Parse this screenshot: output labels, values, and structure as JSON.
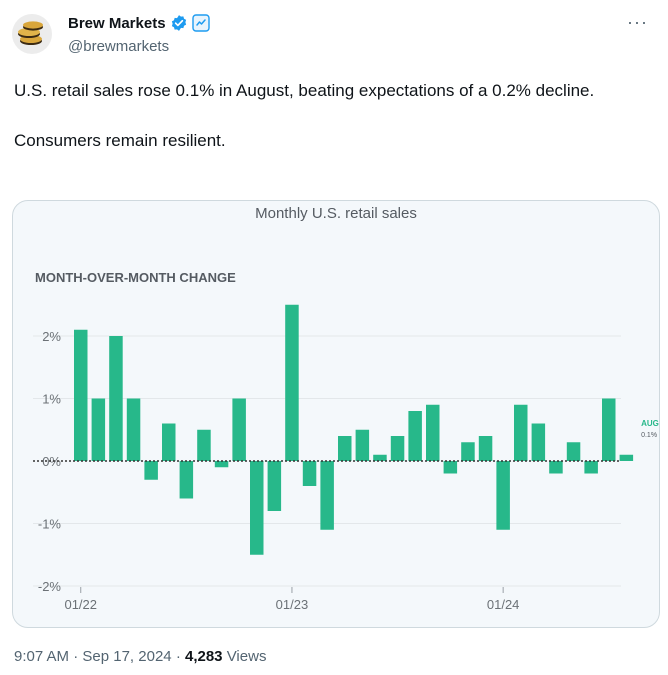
{
  "account": {
    "name": "Brew Markets",
    "handle": "@brewmarkets"
  },
  "tweet": {
    "text": "U.S. retail sales rose 0.1% in August, beating expectations of a 0.2% decline.\n\nConsumers remain resilient."
  },
  "meta": {
    "time": "9:07 AM",
    "date": "Sep 17, 2024",
    "views_count": "4,283",
    "views_label": "Views",
    "sep": "·"
  },
  "colors": {
    "bar": "#27b88a",
    "brand_blue": "#1d9bf0"
  },
  "icons": [
    "avatar-coin-stack-icon",
    "verified-badge-icon",
    "affiliate-badge-icon",
    "more-options-icon"
  ],
  "chart_data": {
    "type": "bar",
    "title": "Monthly U.S. retail sales",
    "subtitle": "MONTH-OVER-MONTH CHANGE",
    "xlabel": "",
    "ylabel": "",
    "ylim": [
      -2,
      2.5
    ],
    "yticks": [
      "2%",
      "1%",
      "0%",
      "-1%",
      "-2%"
    ],
    "ytick_values": [
      2,
      1,
      0,
      -1,
      -2
    ],
    "xtick_labels": [
      {
        "label": "01/22",
        "index": 0
      },
      {
        "label": "01/23",
        "index": 12
      },
      {
        "label": "01/24",
        "index": 24
      }
    ],
    "categories": [
      "01/22",
      "02/22",
      "03/22",
      "04/22",
      "05/22",
      "06/22",
      "07/22",
      "08/22",
      "09/22",
      "10/22",
      "11/22",
      "12/22",
      "01/23",
      "02/23",
      "03/23",
      "04/23",
      "05/23",
      "06/23",
      "07/23",
      "08/23",
      "09/23",
      "10/23",
      "11/23",
      "12/23",
      "01/24",
      "02/24",
      "03/24",
      "04/24",
      "05/24",
      "06/24",
      "07/24",
      "08/24"
    ],
    "values": [
      2.1,
      1.0,
      2.0,
      1.0,
      -0.3,
      0.6,
      -0.6,
      0.5,
      -0.1,
      1.0,
      -1.5,
      -0.8,
      2.5,
      -0.4,
      -1.1,
      0.4,
      0.5,
      0.1,
      0.4,
      0.8,
      0.9,
      -0.2,
      0.3,
      0.4,
      -1.1,
      0.9,
      0.6,
      -0.2,
      0.3,
      -0.2,
      1.0,
      0.1
    ],
    "annotation": {
      "label": "AUG-24",
      "value_text": "0.1%"
    },
    "grid": true,
    "baseline": "dotted"
  }
}
